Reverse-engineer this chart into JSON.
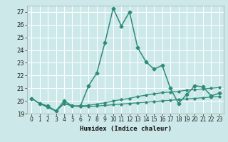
{
  "title": "",
  "xlabel": "Humidex (Indice chaleur)",
  "bg_color": "#cce8e8",
  "grid_color": "#ffffff",
  "line_color": "#2e8b7a",
  "xlim": [
    -0.5,
    23.5
  ],
  "ylim": [
    19.0,
    27.5
  ],
  "yticks": [
    19,
    20,
    21,
    22,
    23,
    24,
    25,
    26,
    27
  ],
  "xticks": [
    0,
    1,
    2,
    3,
    4,
    5,
    6,
    7,
    8,
    9,
    10,
    11,
    12,
    13,
    14,
    15,
    16,
    17,
    18,
    19,
    20,
    21,
    22,
    23
  ],
  "series": [
    {
      "x": [
        0,
        1,
        2,
        3,
        4,
        5,
        6,
        7,
        8,
        9,
        10,
        11,
        12,
        13,
        14,
        15,
        16,
        17,
        18,
        19,
        20,
        21,
        22,
        23
      ],
      "y": [
        20.2,
        19.8,
        19.6,
        19.2,
        20.0,
        19.6,
        19.6,
        21.2,
        22.2,
        24.6,
        27.3,
        25.9,
        27.0,
        24.2,
        23.1,
        22.5,
        22.8,
        21.0,
        19.8,
        20.5,
        21.2,
        21.1,
        20.4,
        20.6
      ],
      "marker": "D",
      "markersize": 2.5,
      "linewidth": 1.1
    },
    {
      "x": [
        0,
        1,
        2,
        3,
        4,
        5,
        6,
        7,
        8,
        9,
        10,
        11,
        12,
        13,
        14,
        15,
        16,
        17,
        18,
        19,
        20,
        21,
        22,
        23
      ],
      "y": [
        20.2,
        19.8,
        19.5,
        19.2,
        19.8,
        19.6,
        19.55,
        19.55,
        19.6,
        19.65,
        19.7,
        19.75,
        19.8,
        19.85,
        19.9,
        19.95,
        20.0,
        20.05,
        20.1,
        20.15,
        20.2,
        20.25,
        20.3,
        20.35
      ],
      "marker": "D",
      "markersize": 1.8,
      "linewidth": 0.9
    },
    {
      "x": [
        0,
        1,
        2,
        3,
        4,
        5,
        6,
        7,
        8,
        9,
        10,
        11,
        12,
        13,
        14,
        15,
        16,
        17,
        18,
        19,
        20,
        21,
        22,
        23
      ],
      "y": [
        20.2,
        19.8,
        19.5,
        19.2,
        19.8,
        19.6,
        19.6,
        19.65,
        19.75,
        19.85,
        20.0,
        20.1,
        20.2,
        20.35,
        20.45,
        20.55,
        20.65,
        20.7,
        20.75,
        20.85,
        20.9,
        20.95,
        21.0,
        21.05
      ],
      "marker": "D",
      "markersize": 1.8,
      "linewidth": 0.9
    }
  ],
  "xlabel_fontsize": 6.5,
  "tick_fontsize": 5.5,
  "ytick_fontsize": 6.0
}
